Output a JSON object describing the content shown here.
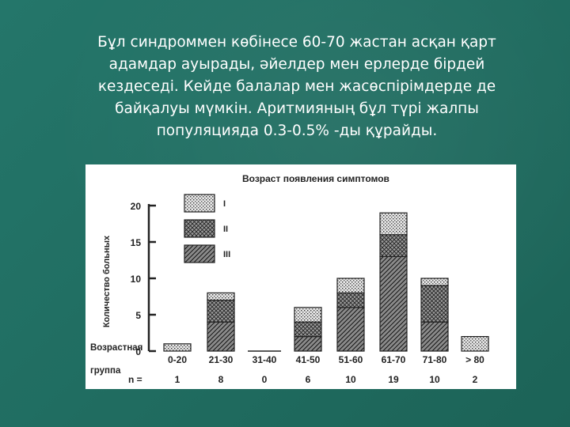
{
  "slide": {
    "text": "Бұл синдроммен көбінесе 60-70 жастан асқан қарт адамдар ауырады, әйелдер мен ерлерде бірдей кездеседі. Кейде балалар мен жасөспірімдерде де байқалуы мүмкін. Аритмияның бұл түрі жалпы популяцияда 0.3-0.5% -ды құрайды.",
    "background_color": "#1f6b5e"
  },
  "chart_data": {
    "type": "bar",
    "stacked": true,
    "title": "Возраст появления симптомов",
    "ylabel": "Количество больных",
    "xlabel": "Возрастная группа",
    "n_label": "n =",
    "ylim": [
      0,
      20
    ],
    "yticks": [
      "0",
      "5",
      "10",
      "15",
      "20"
    ],
    "categories": [
      "0-20",
      "21-30",
      "31-40",
      "41-50",
      "51-60",
      "61-70",
      "71-80",
      "> 80"
    ],
    "n_values": [
      "1",
      "8",
      "0",
      "6",
      "10",
      "19",
      "10",
      "2"
    ],
    "series": [
      {
        "name": "III",
        "values": [
          0,
          4,
          0,
          2,
          6,
          13,
          4,
          0
        ]
      },
      {
        "name": "II",
        "values": [
          0,
          3,
          0,
          2,
          2,
          3,
          5,
          0
        ]
      },
      {
        "name": "I",
        "values": [
          1,
          1,
          0,
          2,
          2,
          3,
          1,
          2
        ]
      }
    ],
    "legend": [
      "I",
      "II",
      "III"
    ],
    "legend_position": "top-left",
    "grid": false
  }
}
